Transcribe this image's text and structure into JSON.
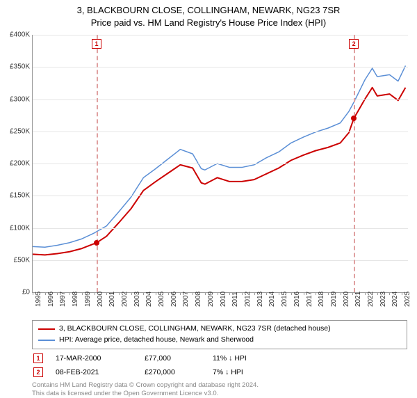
{
  "title_line1": "3, BLACKBOURN CLOSE, COLLINGHAM, NEWARK, NG23 7SR",
  "title_line2": "Price paid vs. HM Land Registry's House Price Index (HPI)",
  "chart": {
    "type": "line",
    "xlim": [
      1995,
      2025.5
    ],
    "ylim": [
      0,
      400000
    ],
    "ytick_step": 50000,
    "ylabels": [
      "£0",
      "£50K",
      "£100K",
      "£150K",
      "£200K",
      "£250K",
      "£300K",
      "£350K",
      "£400K"
    ],
    "xticks": [
      1995,
      1996,
      1997,
      1998,
      1999,
      2000,
      2001,
      2002,
      2003,
      2004,
      2005,
      2006,
      2007,
      2008,
      2009,
      2010,
      2011,
      2012,
      2013,
      2014,
      2015,
      2016,
      2017,
      2018,
      2019,
      2020,
      2021,
      2022,
      2023,
      2024,
      2025
    ],
    "grid_color": "#e5e5e5",
    "background_color": "#ffffff",
    "series": {
      "property": {
        "label": "3, BLACKBOURN CLOSE, COLLINGHAM, NEWARK, NG23 7SR (detached house)",
        "color": "#cc0000",
        "line_width": 2,
        "data": [
          [
            1995,
            59000
          ],
          [
            1996,
            58000
          ],
          [
            1997,
            60000
          ],
          [
            1998,
            63000
          ],
          [
            1999,
            68000
          ],
          [
            2000.2,
            77000
          ],
          [
            2001,
            87000
          ],
          [
            2002,
            108000
          ],
          [
            2003,
            130000
          ],
          [
            2004,
            158000
          ],
          [
            2005,
            172000
          ],
          [
            2006,
            185000
          ],
          [
            2007,
            198000
          ],
          [
            2008,
            193000
          ],
          [
            2008.7,
            170000
          ],
          [
            2009,
            168000
          ],
          [
            2010,
            178000
          ],
          [
            2011,
            172000
          ],
          [
            2012,
            172000
          ],
          [
            2013,
            175000
          ],
          [
            2014,
            184000
          ],
          [
            2015,
            193000
          ],
          [
            2016,
            205000
          ],
          [
            2017,
            213000
          ],
          [
            2018,
            220000
          ],
          [
            2019,
            225000
          ],
          [
            2020,
            232000
          ],
          [
            2020.7,
            248000
          ],
          [
            2021.1,
            270000
          ],
          [
            2022,
            300000
          ],
          [
            2022.6,
            318000
          ],
          [
            2023,
            305000
          ],
          [
            2024,
            308000
          ],
          [
            2024.7,
            298000
          ],
          [
            2025.3,
            318000
          ]
        ]
      },
      "hpi": {
        "label": "HPI: Average price, detached house, Newark and Sherwood",
        "color": "#5b8fd6",
        "line_width": 1.5,
        "data": [
          [
            1995,
            71000
          ],
          [
            1996,
            70000
          ],
          [
            1997,
            73000
          ],
          [
            1998,
            77000
          ],
          [
            1999,
            83000
          ],
          [
            2000,
            92000
          ],
          [
            2001,
            103000
          ],
          [
            2002,
            125000
          ],
          [
            2003,
            148000
          ],
          [
            2004,
            178000
          ],
          [
            2005,
            192000
          ],
          [
            2006,
            207000
          ],
          [
            2007,
            222000
          ],
          [
            2008,
            215000
          ],
          [
            2008.7,
            192000
          ],
          [
            2009,
            190000
          ],
          [
            2010,
            200000
          ],
          [
            2011,
            194000
          ],
          [
            2012,
            194000
          ],
          [
            2013,
            198000
          ],
          [
            2014,
            209000
          ],
          [
            2015,
            218000
          ],
          [
            2016,
            232000
          ],
          [
            2017,
            241000
          ],
          [
            2018,
            249000
          ],
          [
            2019,
            255000
          ],
          [
            2020,
            263000
          ],
          [
            2020.7,
            281000
          ],
          [
            2021.1,
            295000
          ],
          [
            2022,
            330000
          ],
          [
            2022.6,
            348000
          ],
          [
            2023,
            335000
          ],
          [
            2024,
            338000
          ],
          [
            2024.7,
            328000
          ],
          [
            2025.3,
            352000
          ]
        ]
      }
    },
    "sale_markers": [
      {
        "num": "1",
        "year": 2000.2,
        "price": 77000
      },
      {
        "num": "2",
        "year": 2021.1,
        "price": 270000
      }
    ],
    "marker_line_color": "#e0a0a0"
  },
  "legend": {
    "series1": "3, BLACKBOURN CLOSE, COLLINGHAM, NEWARK, NG23 7SR (detached house)",
    "series2": "HPI: Average price, detached house, Newark and Sherwood"
  },
  "sales": [
    {
      "num": "1",
      "date": "17-MAR-2000",
      "price": "£77,000",
      "hpi": "11% ↓ HPI"
    },
    {
      "num": "2",
      "date": "08-FEB-2021",
      "price": "£270,000",
      "hpi": "7% ↓ HPI"
    }
  ],
  "footer_line1": "Contains HM Land Registry data © Crown copyright and database right 2024.",
  "footer_line2": "This data is licensed under the Open Government Licence v3.0."
}
